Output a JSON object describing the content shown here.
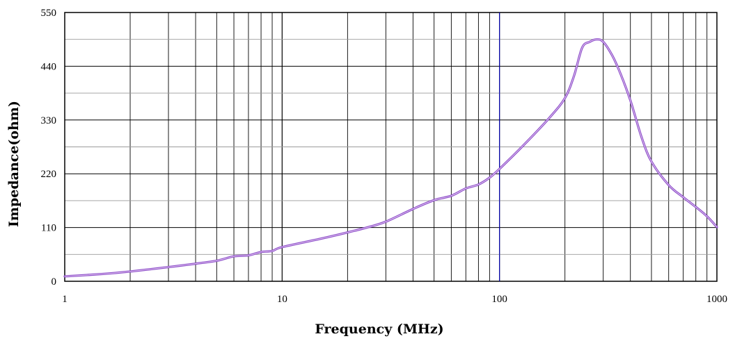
{
  "chart_data": {
    "type": "line",
    "xlabel": "Frequency (MHz)",
    "ylabel": "Impedance(ohm)",
    "x_scale": "log",
    "xlim": [
      1,
      1000
    ],
    "ylim": [
      0,
      550
    ],
    "x_ticks": [
      "1",
      "10",
      "100",
      "1000"
    ],
    "y_ticks": [
      "0",
      "110",
      "220",
      "330",
      "440",
      "550"
    ],
    "grid": true,
    "series": [
      {
        "color": "#8a4bc9",
        "x": [
          1,
          1.5,
          2,
          3,
          4,
          5,
          6,
          7,
          8,
          9,
          10,
          15,
          20,
          25,
          30,
          40,
          50,
          60,
          70,
          80,
          90,
          100,
          130,
          170,
          200,
          220,
          240,
          260,
          280,
          300,
          330,
          360,
          400,
          450,
          500,
          600,
          700,
          800,
          900,
          1000
        ],
        "y": [
          10,
          15,
          20,
          29,
          36,
          42,
          51,
          53,
          60,
          62,
          70,
          87,
          100,
          111,
          122,
          148,
          166,
          175,
          190,
          198,
          212,
          230,
          280,
          335,
          375,
          420,
          478,
          490,
          495,
          490,
          462,
          425,
          370,
          295,
          245,
          197,
          172,
          152,
          133,
          111
        ]
      }
    ]
  }
}
